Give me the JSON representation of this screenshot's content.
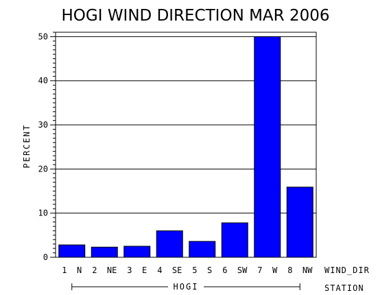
{
  "chart_data": {
    "type": "bar",
    "title": "HOGI WIND DIRECTION MAR 2006",
    "ylabel": "PERCENT",
    "x_dimension_label": "WIND_DIR",
    "group_dimension_label": "STATION",
    "group_label": "HOGI",
    "categories": [
      "1 N",
      "2 NE",
      "3 E",
      "4 SE",
      "5 S",
      "6 SW",
      "7 W",
      "8 NW"
    ],
    "values": [
      2.8,
      2.3,
      2.5,
      6.0,
      3.6,
      7.8,
      50.0,
      15.9
    ],
    "ylim": [
      0,
      51
    ],
    "y_ticks": [
      0,
      10,
      20,
      30,
      40,
      50
    ],
    "grid": true,
    "bar_color": "#0000ff"
  }
}
